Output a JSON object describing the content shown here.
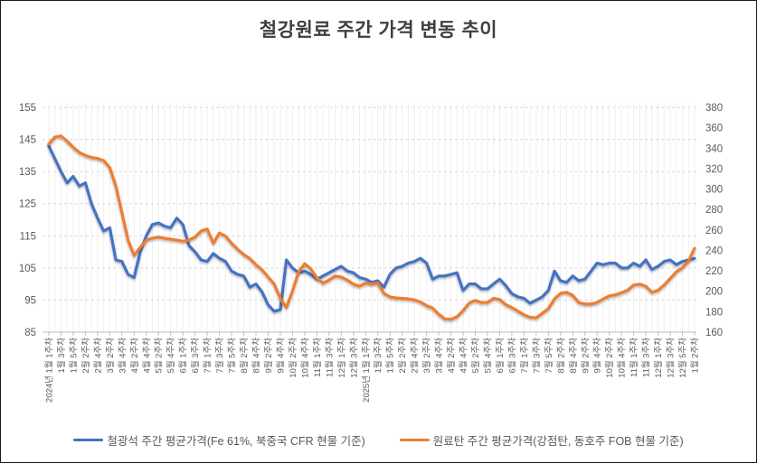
{
  "chart_data": {
    "type": "line",
    "title": "철강원료 주간 가격 변동 추이",
    "legend_position": "bottom",
    "grid": {
      "horizontal": "dashed",
      "vertical_minor_per_week": true
    },
    "left_axis": {
      "min": 85,
      "max": 155,
      "step": 10,
      "ticks": [
        85,
        95,
        105,
        115,
        125,
        135,
        145,
        155
      ]
    },
    "right_axis": {
      "min": 160,
      "max": 380,
      "step": 20,
      "ticks": [
        160,
        180,
        200,
        220,
        240,
        260,
        280,
        300,
        320,
        340,
        360,
        380
      ]
    },
    "x_label_every_n_weeks": 2,
    "x_labels": [
      "2024년 1월 1주차",
      "1월 3주차",
      "1월 5주차",
      "2월 2주차",
      "2월 4주차",
      "3월 2주차",
      "3월 4주차",
      "4월 2주차",
      "4월 4주차",
      "5월 2주차",
      "5월 4주차",
      "6월 1주차",
      "6월 3주차",
      "7월 1주차",
      "7월 3주차",
      "7월 5주차",
      "8월 2주차",
      "8월 4주차",
      "9월 2주차",
      "9월 4주차",
      "10월 2주차",
      "10월 4주차",
      "11월 1주차",
      "11월 3주차",
      "12월 1주차",
      "12월 3주차",
      "2025년 1월 1주차",
      "1월 3주차",
      "1월 5주차",
      "2월 2주차",
      "2월 4주차",
      "3월 2주차",
      "3월 4주차",
      "4월 2주차",
      "4월 4주차",
      "5월 2주차",
      "5월 4주차",
      "6월 1주차",
      "6월 3주차",
      "7월 1주차",
      "7월 3주차",
      "7월 5주차",
      "8월 2주차",
      "8월 4주차",
      "9월 2주차",
      "9월 4주차",
      "10월 2주차",
      "10월 4주차",
      "11월 1주차",
      "11월 3주차",
      "12월 1주차",
      "12월 3주차",
      "12월 5주차",
      "1월 2주차"
    ],
    "series": [
      {
        "name": "철광석 주간 평균가격(Fe 61%, 북중국 CFR 현물 기준)",
        "color": "#4472C4",
        "axis": "left",
        "values": [
          143,
          139,
          135,
          131.5,
          133.5,
          130.5,
          131.5,
          125,
          120.5,
          116.5,
          117.5,
          107.5,
          107,
          103,
          102,
          110,
          115,
          118.5,
          119,
          118,
          117.5,
          120.5,
          118.5,
          112,
          110,
          107.5,
          107,
          109.5,
          108,
          107,
          104,
          103,
          102.5,
          99,
          100,
          97.5,
          93.5,
          91.5,
          92,
          107.5,
          105,
          103.5,
          104,
          103,
          101.5,
          102.5,
          103.5,
          104.5,
          105.5,
          104,
          103.5,
          102,
          101.5,
          100.5,
          101,
          99,
          103,
          105,
          105.5,
          106.5,
          107,
          108,
          106.5,
          101.5,
          102.5,
          102.5,
          103,
          103.5,
          98,
          100,
          100,
          98.5,
          98.5,
          100,
          101.5,
          99.5,
          97,
          96,
          95.5,
          94,
          95,
          96,
          98,
          104,
          101,
          100.5,
          102.5,
          101,
          101.5,
          104,
          106.5,
          106,
          106.5,
          106.5,
          105,
          105,
          106.5,
          105.5,
          107.5,
          104.5,
          105.5,
          107,
          107.5,
          106,
          107,
          107.5,
          108
        ]
      },
      {
        "name": "원료탄 주간 평균가격(강점탄, 동호주 FOB 현물 기준)",
        "color": "#ED7D31",
        "axis": "right",
        "values": [
          344,
          351,
          352,
          347,
          341,
          336,
          333,
          331,
          330,
          328,
          321,
          303,
          277,
          250,
          235,
          243,
          250,
          252,
          253,
          252,
          251,
          250,
          249,
          250,
          253,
          259,
          261,
          247,
          257,
          254,
          247,
          241,
          236,
          232,
          226,
          221,
          214,
          207,
          193,
          184,
          200,
          219,
          227,
          222,
          213,
          208,
          211,
          215,
          214,
          211,
          207,
          205,
          208,
          207,
          208,
          198,
          194.5,
          193.5,
          193,
          192.5,
          191.5,
          189.5,
          186,
          183.5,
          177.5,
          173,
          172.5,
          175,
          181,
          188.5,
          191,
          189,
          189,
          193,
          192,
          187,
          184,
          180.5,
          177,
          174.5,
          174,
          178.5,
          183,
          192.5,
          198,
          199,
          196,
          189,
          187.5,
          187.5,
          189,
          192.5,
          195.5,
          196.5,
          198.5,
          201,
          206,
          207,
          205,
          199,
          201,
          206,
          212.5,
          219,
          223,
          229.5,
          242
        ]
      }
    ],
    "style": {
      "title_color": "#3f3f3f",
      "axis_label_color": "#595959",
      "x_label_color": "#595959",
      "gridline_color": "#d9d9d9",
      "minor_vertical_color": "#efefef",
      "axis_line_color": "#bfbfbf",
      "background": "#ffffff"
    }
  }
}
